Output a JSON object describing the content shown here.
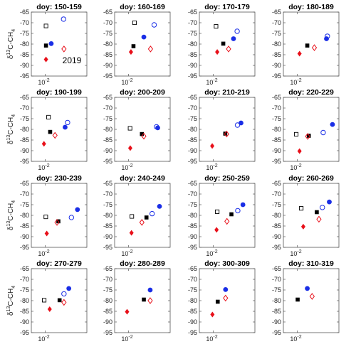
{
  "figure": {
    "year_label": "2019",
    "ylabel": {
      "prefix": "δ",
      "sup": "13",
      "mid": "C-CH",
      "sub": "4"
    },
    "xlabel": {
      "main": "F",
      "sub": "CH4"
    },
    "x_tick_label": {
      "base": "10",
      "sup": "-2"
    }
  },
  "chart_data": [
    {
      "type": "scatter",
      "title": "doy: 150-159",
      "ylim": [
        -95,
        -65
      ],
      "yticks": [
        -95,
        -90,
        -85,
        -80,
        -75,
        -70,
        -65
      ],
      "xscale": "log",
      "xlim": [
        0.005,
        0.08
      ],
      "xtick": 0.01,
      "points": [
        {
          "marker": "open-square",
          "x": 0.0104,
          "y": -71.5
        },
        {
          "marker": "filled-square",
          "x": 0.0104,
          "y": -80.7
        },
        {
          "marker": "filled-circle",
          "x": 0.0135,
          "y": -79.8
        },
        {
          "marker": "open-circle",
          "x": 0.025,
          "y": -68.3
        },
        {
          "marker": "filled-diamond",
          "x": 0.0104,
          "y": -87.2
        },
        {
          "marker": "open-diamond",
          "x": 0.0255,
          "y": -82.3
        }
      ]
    },
    {
      "type": "scatter",
      "title": "doy: 160-169",
      "ylim": [
        -95,
        -65
      ],
      "yticks": [
        -95,
        -90,
        -85,
        -80,
        -75,
        -70,
        -65
      ],
      "xscale": "log",
      "xlim": [
        0.005,
        0.08
      ],
      "xtick": 0.01,
      "points": [
        {
          "marker": "open-square",
          "x": 0.0135,
          "y": -70.0
        },
        {
          "marker": "filled-square",
          "x": 0.0128,
          "y": -81.0
        },
        {
          "marker": "filled-circle",
          "x": 0.0215,
          "y": -76.7
        },
        {
          "marker": "open-circle",
          "x": 0.036,
          "y": -71.0
        },
        {
          "marker": "filled-diamond",
          "x": 0.0113,
          "y": -83.7
        },
        {
          "marker": "open-diamond",
          "x": 0.03,
          "y": -82.3
        }
      ]
    },
    {
      "type": "scatter",
      "title": "doy: 170-179",
      "ylim": [
        -95,
        -65
      ],
      "yticks": [
        -95,
        -90,
        -85,
        -80,
        -75,
        -70,
        -65
      ],
      "xscale": "log",
      "xlim": [
        0.005,
        0.08
      ],
      "xtick": 0.01,
      "points": [
        {
          "marker": "open-square",
          "x": 0.0115,
          "y": -71.7
        },
        {
          "marker": "filled-square",
          "x": 0.0165,
          "y": -79.8
        },
        {
          "marker": "filled-circle",
          "x": 0.0275,
          "y": -77.5
        },
        {
          "marker": "open-circle",
          "x": 0.033,
          "y": -74.0
        },
        {
          "marker": "filled-diamond",
          "x": 0.0122,
          "y": -83.7
        },
        {
          "marker": "open-diamond",
          "x": 0.0215,
          "y": -82.3
        }
      ]
    },
    {
      "type": "scatter",
      "title": "doy: 180-189",
      "ylim": [
        -95,
        -65
      ],
      "yticks": [
        -95,
        -90,
        -85,
        -80,
        -75,
        -70,
        -65
      ],
      "xscale": "log",
      "xlim": [
        0.005,
        0.08
      ],
      "xtick": 0.01,
      "points": [
        {
          "marker": "filled-square",
          "x": 0.0165,
          "y": -80.7
        },
        {
          "marker": "filled-circle",
          "x": 0.043,
          "y": -77.5
        },
        {
          "marker": "open-circle",
          "x": 0.045,
          "y": -76.3
        },
        {
          "marker": "filled-diamond",
          "x": 0.0112,
          "y": -84.5
        },
        {
          "marker": "open-diamond",
          "x": 0.0235,
          "y": -81.7
        }
      ]
    },
    {
      "type": "scatter",
      "title": "doy: 190-199",
      "ylim": [
        -95,
        -65
      ],
      "yticks": [
        -95,
        -90,
        -85,
        -80,
        -75,
        -70,
        -65
      ],
      "xscale": "log",
      "xlim": [
        0.005,
        0.08
      ],
      "xtick": 0.01,
      "points": [
        {
          "marker": "open-square",
          "x": 0.0118,
          "y": -74.3
        },
        {
          "marker": "filled-square",
          "x": 0.0128,
          "y": -81.2
        },
        {
          "marker": "filled-circle",
          "x": 0.027,
          "y": -79.0
        },
        {
          "marker": "open-circle",
          "x": 0.0305,
          "y": -76.8
        },
        {
          "marker": "filled-diamond",
          "x": 0.0094,
          "y": -86.8
        },
        {
          "marker": "open-diamond",
          "x": 0.0163,
          "y": -82.8
        }
      ]
    },
    {
      "type": "scatter",
      "title": "doy: 200-209",
      "ylim": [
        -95,
        -65
      ],
      "yticks": [
        -95,
        -90,
        -85,
        -80,
        -75,
        -70,
        -65
      ],
      "xscale": "log",
      "xlim": [
        0.005,
        0.08
      ],
      "xtick": 0.01,
      "points": [
        {
          "marker": "open-square",
          "x": 0.0108,
          "y": -79.5
        },
        {
          "marker": "filled-square",
          "x": 0.0195,
          "y": -82.2
        },
        {
          "marker": "filled-circle",
          "x": 0.043,
          "y": -79.3
        },
        {
          "marker": "open-circle",
          "x": 0.0405,
          "y": -78.8
        },
        {
          "marker": "filled-diamond",
          "x": 0.0109,
          "y": -88.8
        },
        {
          "marker": "open-diamond",
          "x": 0.0215,
          "y": -83.2
        }
      ]
    },
    {
      "type": "scatter",
      "title": "doy: 210-219",
      "ylim": [
        -95,
        -65
      ],
      "yticks": [
        -95,
        -90,
        -85,
        -80,
        -75,
        -70,
        -65
      ],
      "xscale": "log",
      "xlim": [
        0.005,
        0.08
      ],
      "xtick": 0.01,
      "points": [
        {
          "marker": "filled-square",
          "x": 0.0182,
          "y": -82.0
        },
        {
          "marker": "filled-circle",
          "x": 0.04,
          "y": -77.0
        },
        {
          "marker": "open-circle",
          "x": 0.0335,
          "y": -78.0
        },
        {
          "marker": "filled-diamond",
          "x": 0.0095,
          "y": -87.8
        },
        {
          "marker": "open-diamond",
          "x": 0.0195,
          "y": -82.2
        }
      ]
    },
    {
      "type": "scatter",
      "title": "doy: 220-229",
      "ylim": [
        -95,
        -65
      ],
      "yticks": [
        -95,
        -90,
        -85,
        -80,
        -75,
        -70,
        -65
      ],
      "xscale": "log",
      "xlim": [
        0.005,
        0.08
      ],
      "xtick": 0.01,
      "points": [
        {
          "marker": "open-square",
          "x": 0.0095,
          "y": -82.3
        },
        {
          "marker": "filled-square",
          "x": 0.0178,
          "y": -83.0
        },
        {
          "marker": "filled-circle",
          "x": 0.058,
          "y": -77.7
        },
        {
          "marker": "open-circle",
          "x": 0.0365,
          "y": -81.5
        },
        {
          "marker": "filled-diamond",
          "x": 0.0112,
          "y": -90.2
        },
        {
          "marker": "open-diamond",
          "x": 0.0168,
          "y": -83.3
        }
      ]
    },
    {
      "type": "scatter",
      "title": "doy: 230-239",
      "ylim": [
        -95,
        -65
      ],
      "yticks": [
        -95,
        -90,
        -85,
        -80,
        -75,
        -70,
        -65
      ],
      "xscale": "log",
      "xlim": [
        0.005,
        0.08
      ],
      "xtick": 0.01,
      "points": [
        {
          "marker": "open-square",
          "x": 0.0103,
          "y": -80.7
        },
        {
          "marker": "filled-square",
          "x": 0.0193,
          "y": -82.8
        },
        {
          "marker": "filled-circle",
          "x": 0.05,
          "y": -77.3
        },
        {
          "marker": "open-circle",
          "x": 0.037,
          "y": -81.0
        },
        {
          "marker": "filled-diamond",
          "x": 0.0108,
          "y": -88.5
        },
        {
          "marker": "open-diamond",
          "x": 0.018,
          "y": -83.3
        }
      ]
    },
    {
      "type": "scatter",
      "title": "doy: 240-249",
      "ylim": [
        -95,
        -65
      ],
      "yticks": [
        -95,
        -90,
        -85,
        -80,
        -75,
        -70,
        -65
      ],
      "xscale": "log",
      "xlim": [
        0.005,
        0.08
      ],
      "xtick": 0.01,
      "points": [
        {
          "marker": "open-square",
          "x": 0.0118,
          "y": -80.5
        },
        {
          "marker": "filled-square",
          "x": 0.0245,
          "y": -81.0
        },
        {
          "marker": "filled-circle",
          "x": 0.047,
          "y": -75.8
        },
        {
          "marker": "open-circle",
          "x": 0.0325,
          "y": -79.2
        },
        {
          "marker": "filled-diamond",
          "x": 0.0116,
          "y": -88.2
        },
        {
          "marker": "open-diamond",
          "x": 0.0195,
          "y": -83.3
        }
      ]
    },
    {
      "type": "scatter",
      "title": "doy: 250-259",
      "ylim": [
        -95,
        -65
      ],
      "yticks": [
        -95,
        -90,
        -85,
        -80,
        -75,
        -70,
        -65
      ],
      "xscale": "log",
      "xlim": [
        0.005,
        0.08
      ],
      "xtick": 0.01,
      "points": [
        {
          "marker": "open-square",
          "x": 0.0122,
          "y": -78.3
        },
        {
          "marker": "filled-square",
          "x": 0.0248,
          "y": -79.5
        },
        {
          "marker": "filled-circle",
          "x": 0.044,
          "y": -75.0
        },
        {
          "marker": "open-circle",
          "x": 0.034,
          "y": -77.8
        },
        {
          "marker": "filled-diamond",
          "x": 0.0118,
          "y": -86.8
        },
        {
          "marker": "open-diamond",
          "x": 0.0198,
          "y": -82.8
        }
      ]
    },
    {
      "type": "scatter",
      "title": "doy: 260-269",
      "ylim": [
        -95,
        -65
      ],
      "yticks": [
        -95,
        -90,
        -85,
        -80,
        -75,
        -70,
        -65
      ],
      "xscale": "log",
      "xlim": [
        0.005,
        0.08
      ],
      "xtick": 0.01,
      "points": [
        {
          "marker": "open-square",
          "x": 0.0122,
          "y": -76.7
        },
        {
          "marker": "filled-square",
          "x": 0.0265,
          "y": -78.5
        },
        {
          "marker": "filled-circle",
          "x": 0.0495,
          "y": -73.7
        },
        {
          "marker": "open-circle",
          "x": 0.035,
          "y": -76.3
        },
        {
          "marker": "filled-diamond",
          "x": 0.0135,
          "y": -85.3
        },
        {
          "marker": "open-diamond",
          "x": 0.0295,
          "y": -81.8
        }
      ]
    },
    {
      "type": "scatter",
      "title": "doy: 270-279",
      "ylim": [
        -95,
        -65
      ],
      "yticks": [
        -95,
        -90,
        -85,
        -80,
        -75,
        -70,
        -65
      ],
      "xscale": "log",
      "xlim": [
        0.005,
        0.08
      ],
      "xtick": 0.01,
      "points": [
        {
          "marker": "open-square",
          "x": 0.0095,
          "y": -79.8
        },
        {
          "marker": "filled-square",
          "x": 0.0205,
          "y": -79.8
        },
        {
          "marker": "filled-circle",
          "x": 0.0325,
          "y": -74.3
        },
        {
          "marker": "open-circle",
          "x": 0.0255,
          "y": -76.8
        },
        {
          "marker": "filled-diamond",
          "x": 0.0125,
          "y": -84.0
        },
        {
          "marker": "open-diamond",
          "x": 0.0255,
          "y": -80.8
        }
      ]
    },
    {
      "type": "scatter",
      "title": "doy: 280-289",
      "ylim": [
        -95,
        -65
      ],
      "yticks": [
        -95,
        -90,
        -85,
        -80,
        -75,
        -70,
        -65
      ],
      "xscale": "log",
      "xlim": [
        0.005,
        0.08
      ],
      "xtick": 0.01,
      "points": [
        {
          "marker": "filled-square",
          "x": 0.0215,
          "y": -79.5
        },
        {
          "marker": "filled-circle",
          "x": 0.0295,
          "y": -75.0
        },
        {
          "marker": "filled-diamond",
          "x": 0.0093,
          "y": -85.2
        },
        {
          "marker": "open-diamond",
          "x": 0.0295,
          "y": -80.0
        }
      ]
    },
    {
      "type": "scatter",
      "title": "doy: 300-309",
      "ylim": [
        -95,
        -65
      ],
      "yticks": [
        -95,
        -90,
        -85,
        -80,
        -75,
        -70,
        -65
      ],
      "xscale": "log",
      "xlim": [
        0.005,
        0.08
      ],
      "xtick": 0.01,
      "points": [
        {
          "marker": "filled-square",
          "x": 0.0125,
          "y": -80.5
        },
        {
          "marker": "filled-circle",
          "x": 0.0185,
          "y": -74.8
        },
        {
          "marker": "filled-diamond",
          "x": 0.0096,
          "y": -86.5
        },
        {
          "marker": "open-diamond",
          "x": 0.0185,
          "y": -78.8
        }
      ]
    },
    {
      "type": "scatter",
      "title": "doy: 310-319",
      "ylim": [
        -95,
        -65
      ],
      "yticks": [
        -95,
        -90,
        -85,
        -80,
        -75,
        -70,
        -65
      ],
      "xscale": "log",
      "xlim": [
        0.005,
        0.08
      ],
      "xtick": 0.01,
      "points": [
        {
          "marker": "filled-square",
          "x": 0.0102,
          "y": -79.5
        },
        {
          "marker": "filled-circle",
          "x": 0.0165,
          "y": -74.3
        },
        {
          "marker": "open-diamond",
          "x": 0.021,
          "y": -78.0
        }
      ]
    }
  ],
  "colors": {
    "black": "#000000",
    "blue": "#1a2ee6",
    "red": "#e8101a",
    "axis": "#555555"
  }
}
